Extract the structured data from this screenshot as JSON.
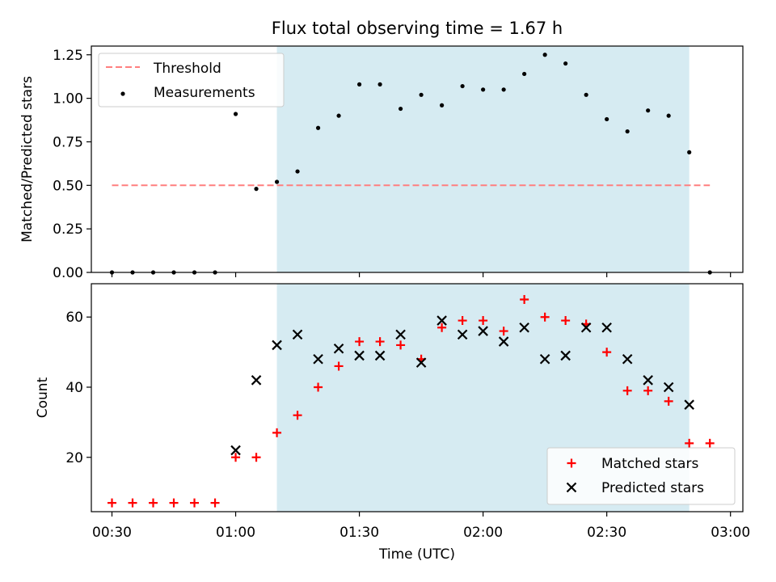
{
  "chart_data": [
    {
      "type": "scatter",
      "title": "Flux total observing time = 1.67 h",
      "ylabel": "Matched/Predicted stars",
      "xlim": [
        "00:25",
        "03:03"
      ],
      "ylim": [
        0,
        1.3
      ],
      "yticks": [
        0.0,
        0.25,
        0.5,
        0.75,
        1.0,
        1.25
      ],
      "ytick_labels": [
        "0.00",
        "0.25",
        "0.50",
        "0.75",
        "1.00",
        "1.25"
      ],
      "shaded_span": [
        "01:10",
        "02:50"
      ],
      "shade_color": "#add8e6",
      "legend_position": "upper left",
      "threshold": {
        "name": "Threshold",
        "value": 0.5,
        "x": [
          "00:30",
          "02:55"
        ],
        "color": "#ff7f7f"
      },
      "series": [
        {
          "name": "Measurements",
          "color": "#000000",
          "x": [
            "00:30",
            "00:35",
            "00:40",
            "00:45",
            "00:50",
            "00:55",
            "01:00",
            "01:05",
            "01:10",
            "01:15",
            "01:20",
            "01:25",
            "01:30",
            "01:35",
            "01:40",
            "01:45",
            "01:50",
            "01:55",
            "02:00",
            "02:05",
            "02:10",
            "02:15",
            "02:20",
            "02:25",
            "02:30",
            "02:35",
            "02:40",
            "02:45",
            "02:50",
            "02:55"
          ],
          "y": [
            0,
            0,
            0,
            0,
            0,
            0,
            0.91,
            0.48,
            0.52,
            0.58,
            0.83,
            0.9,
            1.08,
            1.08,
            0.94,
            1.02,
            0.96,
            1.07,
            1.05,
            1.05,
            1.14,
            1.25,
            1.2,
            1.02,
            0.88,
            0.81,
            0.93,
            0.9,
            0.69,
            0
          ]
        }
      ]
    },
    {
      "type": "scatter",
      "xlabel": "Time (UTC)",
      "ylabel": "Count",
      "xlim": [
        "00:25",
        "03:03"
      ],
      "ylim": [
        4.5,
        69.5
      ],
      "yticks": [
        20,
        40,
        60
      ],
      "ytick_labels": [
        "20",
        "40",
        "60"
      ],
      "xticks": [
        "00:30",
        "01:00",
        "01:30",
        "02:00",
        "02:30",
        "03:00"
      ],
      "shaded_span": [
        "01:10",
        "02:50"
      ],
      "shade_color": "#add8e6",
      "legend_position": "lower right",
      "series": [
        {
          "name": "Matched stars",
          "marker": "+",
          "color": "#ff0000",
          "x": [
            "00:30",
            "00:35",
            "00:40",
            "00:45",
            "00:50",
            "00:55",
            "01:00",
            "01:05",
            "01:10",
            "01:15",
            "01:20",
            "01:25",
            "01:30",
            "01:35",
            "01:40",
            "01:45",
            "01:50",
            "01:55",
            "02:00",
            "02:05",
            "02:10",
            "02:15",
            "02:20",
            "02:25",
            "02:30",
            "02:35",
            "02:40",
            "02:45",
            "02:50",
            "02:55"
          ],
          "y": [
            7,
            7,
            7,
            7,
            7,
            7,
            20,
            20,
            27,
            32,
            40,
            46,
            53,
            53,
            52,
            48,
            57,
            59,
            59,
            56,
            65,
            60,
            59,
            58,
            50,
            39,
            39,
            36,
            24,
            24
          ]
        },
        {
          "name": "Predicted stars",
          "marker": "x",
          "color": "#000000",
          "x": [
            "01:00",
            "01:05",
            "01:10",
            "01:15",
            "01:20",
            "01:25",
            "01:30",
            "01:35",
            "01:40",
            "01:45",
            "01:50",
            "01:55",
            "02:00",
            "02:05",
            "02:10",
            "02:15",
            "02:20",
            "02:25",
            "02:30",
            "02:35",
            "02:40",
            "02:45",
            "02:50"
          ],
          "y": [
            22,
            42,
            52,
            55,
            48,
            51,
            49,
            49,
            55,
            47,
            59,
            55,
            56,
            53,
            57,
            48,
            49,
            57,
            57,
            48,
            42,
            40,
            35
          ]
        }
      ]
    }
  ]
}
